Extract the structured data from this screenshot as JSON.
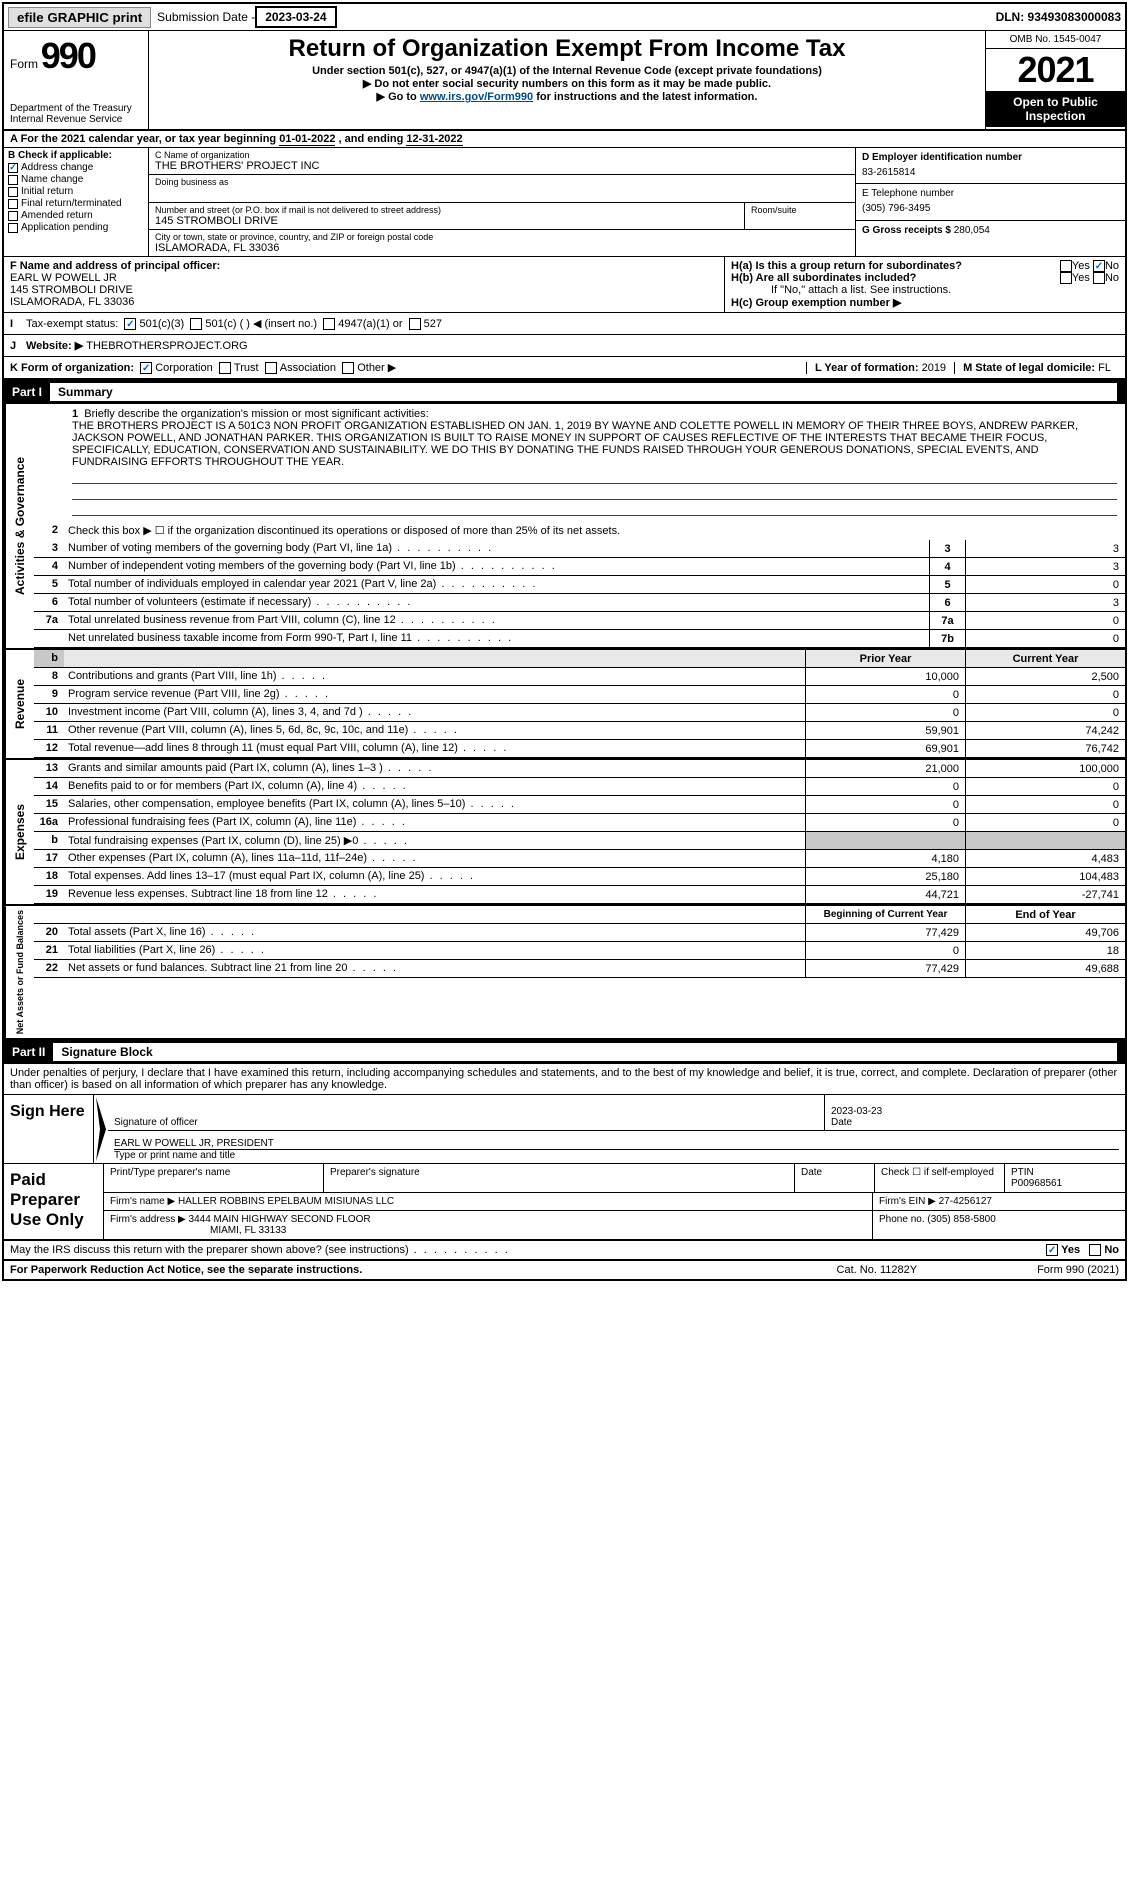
{
  "topbar": {
    "efile": "efile GRAPHIC print",
    "sub_label": "Submission Date - ",
    "sub_date": "2023-03-24",
    "dln": "DLN: 93493083000083"
  },
  "header": {
    "form_word": "Form",
    "form_num": "990",
    "dept": "Department of the Treasury\nInternal Revenue Service",
    "title": "Return of Organization Exempt From Income Tax",
    "sub1": "Under section 501(c), 527, or 4947(a)(1) of the Internal Revenue Code (except private foundations)",
    "sub2": "▶ Do not enter social security numbers on this form as it may be made public.",
    "sub3_pre": "▶ Go to ",
    "sub3_link": "www.irs.gov/Form990",
    "sub3_post": " for instructions and the latest information.",
    "omb": "OMB No. 1545-0047",
    "year": "2021",
    "open": "Open to Public Inspection"
  },
  "a_row": {
    "text_pre": "A For the 2021 calendar year, or tax year beginning ",
    "begin": "01-01-2022",
    "mid": " , and ending ",
    "end": "12-31-2022"
  },
  "b": {
    "title": "B Check if applicable:",
    "items": [
      "Address change",
      "Name change",
      "Initial return",
      "Final return/terminated",
      "Amended return",
      "Application pending"
    ],
    "checked_idx": 0
  },
  "c": {
    "name_lbl": "C Name of organization",
    "name": "THE BROTHERS' PROJECT INC",
    "dba_lbl": "Doing business as",
    "dba": "",
    "addr_lbl": "Number and street (or P.O. box if mail is not delivered to street address)",
    "room_lbl": "Room/suite",
    "addr": "145 STROMBOLI DRIVE",
    "city_lbl": "City or town, state or province, country, and ZIP or foreign postal code",
    "city": "ISLAMORADA, FL  33036"
  },
  "d": {
    "lbl": "D Employer identification number",
    "val": "83-2615814"
  },
  "e": {
    "lbl": "E Telephone number",
    "val": "(305) 796-3495"
  },
  "g": {
    "lbl": "G Gross receipts $",
    "val": "280,054"
  },
  "f": {
    "lbl": "F  Name and address of principal officer:",
    "name": "EARL W POWELL JR",
    "addr1": "145 STROMBOLI DRIVE",
    "addr2": "ISLAMORADA, FL  33036"
  },
  "h": {
    "a_lbl": "H(a)  Is this a group return for subordinates?",
    "b_lbl": "H(b)  Are all subordinates included?",
    "note": "If \"No,\" attach a list. See instructions.",
    "c_lbl": "H(c)  Group exemption number ▶",
    "yes": "Yes",
    "no": "No"
  },
  "i": {
    "lbl": "Tax-exempt status:",
    "opts": [
      "501(c)(3)",
      "501(c) (  ) ◀ (insert no.)",
      "4947(a)(1) or",
      "527"
    ]
  },
  "j": {
    "lbl": "Website: ▶",
    "val": "THEBROTHERSPROJECT.ORG"
  },
  "k": {
    "lbl": "K Form of organization:",
    "opts": [
      "Corporation",
      "Trust",
      "Association",
      "Other ▶"
    ]
  },
  "l": {
    "lbl": "L Year of formation:",
    "val": "2019"
  },
  "m": {
    "lbl": "M State of legal domicile:",
    "val": "FL"
  },
  "part1": {
    "num": "Part I",
    "title": "Summary"
  },
  "mission": {
    "lbl": "Briefly describe the organization's mission or most significant activities:",
    "text": "THE BROTHERS PROJECT IS A 501C3 NON PROFIT ORGANIZATION ESTABLISHED ON JAN. 1, 2019 BY WAYNE AND COLETTE POWELL IN MEMORY OF THEIR THREE BOYS, ANDREW PARKER, JACKSON POWELL, AND JONATHAN PARKER. THIS ORGANIZATION IS BUILT TO RAISE MONEY IN SUPPORT OF CAUSES REFLECTIVE OF THE INTERESTS THAT BECAME THEIR FOCUS, SPECIFICALLY, EDUCATION, CONSERVATION AND SUSTAINABILITY. WE DO THIS BY DONATING THE FUNDS RAISED THROUGH YOUR GENEROUS DONATIONS, SPECIAL EVENTS, AND FUNDRAISING EFFORTS THROUGHOUT THE YEAR."
  },
  "line2": "Check this box ▶ ☐ if the organization discontinued its operations or disposed of more than 25% of its net assets.",
  "gov_rows": [
    {
      "n": "3",
      "t": "Number of voting members of the governing body (Part VI, line 1a)",
      "box": "3",
      "v": "3"
    },
    {
      "n": "4",
      "t": "Number of independent voting members of the governing body (Part VI, line 1b)",
      "box": "4",
      "v": "3"
    },
    {
      "n": "5",
      "t": "Total number of individuals employed in calendar year 2021 (Part V, line 2a)",
      "box": "5",
      "v": "0"
    },
    {
      "n": "6",
      "t": "Total number of volunteers (estimate if necessary)",
      "box": "6",
      "v": "3"
    },
    {
      "n": "7a",
      "t": "Total unrelated business revenue from Part VIII, column (C), line 12",
      "box": "7a",
      "v": "0"
    },
    {
      "n": "",
      "t": "Net unrelated business taxable income from Form 990-T, Part I, line 11",
      "box": "7b",
      "v": "0"
    }
  ],
  "col_hdr": {
    "prior": "Prior Year",
    "current": "Current Year"
  },
  "rev_rows": [
    {
      "n": "8",
      "t": "Contributions and grants (Part VIII, line 1h)",
      "p": "10,000",
      "c": "2,500"
    },
    {
      "n": "9",
      "t": "Program service revenue (Part VIII, line 2g)",
      "p": "0",
      "c": "0"
    },
    {
      "n": "10",
      "t": "Investment income (Part VIII, column (A), lines 3, 4, and 7d )",
      "p": "0",
      "c": "0"
    },
    {
      "n": "11",
      "t": "Other revenue (Part VIII, column (A), lines 5, 6d, 8c, 9c, 10c, and 11e)",
      "p": "59,901",
      "c": "74,242"
    },
    {
      "n": "12",
      "t": "Total revenue—add lines 8 through 11 (must equal Part VIII, column (A), line 12)",
      "p": "69,901",
      "c": "76,742"
    }
  ],
  "exp_rows": [
    {
      "n": "13",
      "t": "Grants and similar amounts paid (Part IX, column (A), lines 1–3 )",
      "p": "21,000",
      "c": "100,000"
    },
    {
      "n": "14",
      "t": "Benefits paid to or for members (Part IX, column (A), line 4)",
      "p": "0",
      "c": "0"
    },
    {
      "n": "15",
      "t": "Salaries, other compensation, employee benefits (Part IX, column (A), lines 5–10)",
      "p": "0",
      "c": "0"
    },
    {
      "n": "16a",
      "t": "Professional fundraising fees (Part IX, column (A), line 11e)",
      "p": "0",
      "c": "0"
    },
    {
      "n": "b",
      "t": "Total fundraising expenses (Part IX, column (D), line 25) ▶0",
      "p": "",
      "c": "",
      "shade": true
    },
    {
      "n": "17",
      "t": "Other expenses (Part IX, column (A), lines 11a–11d, 11f–24e)",
      "p": "4,180",
      "c": "4,483"
    },
    {
      "n": "18",
      "t": "Total expenses. Add lines 13–17 (must equal Part IX, column (A), line 25)",
      "p": "25,180",
      "c": "104,483"
    },
    {
      "n": "19",
      "t": "Revenue less expenses. Subtract line 18 from line 12",
      "p": "44,721",
      "c": "-27,741"
    }
  ],
  "na_hdr": {
    "begin": "Beginning of Current Year",
    "end": "End of Year"
  },
  "na_rows": [
    {
      "n": "20",
      "t": "Total assets (Part X, line 16)",
      "p": "77,429",
      "c": "49,706"
    },
    {
      "n": "21",
      "t": "Total liabilities (Part X, line 26)",
      "p": "0",
      "c": "18"
    },
    {
      "n": "22",
      "t": "Net assets or fund balances. Subtract line 21 from line 20",
      "p": "77,429",
      "c": "49,688"
    }
  ],
  "vtabs": {
    "gov": "Activities & Governance",
    "rev": "Revenue",
    "exp": "Expenses",
    "na": "Net Assets or Fund Balances"
  },
  "part2": {
    "num": "Part II",
    "title": "Signature Block"
  },
  "penalty": "Under penalties of perjury, I declare that I have examined this return, including accompanying schedules and statements, and to the best of my knowledge and belief, it is true, correct, and complete. Declaration of preparer (other than officer) is based on all information of which preparer has any knowledge.",
  "sign": {
    "here": "Sign Here",
    "sig_lbl": "Signature of officer",
    "date_lbl": "Date",
    "date": "2023-03-23",
    "name": "EARL W POWELL JR, PRESIDENT",
    "name_lbl": "Type or print name and title"
  },
  "paid": {
    "title": "Paid Preparer Use Only",
    "h1": "Print/Type preparer's name",
    "h2": "Preparer's signature",
    "h3": "Date",
    "h4_pre": "Check ☐ if self-employed",
    "h5": "PTIN",
    "ptin": "P00968561",
    "firm_lbl": "Firm's name    ▶",
    "firm": "HALLER ROBBINS EPELBAUM MISIUNAS LLC",
    "ein_lbl": "Firm's EIN ▶",
    "ein": "27-4256127",
    "addr_lbl": "Firm's address ▶",
    "addr1": "3444 MAIN HIGHWAY SECOND FLOOR",
    "addr2": "MIAMI, FL  33133",
    "phone_lbl": "Phone no.",
    "phone": "(305) 858-5800"
  },
  "discuss": {
    "text": "May the IRS discuss this return with the preparer shown above? (see instructions)",
    "yes": "Yes",
    "no": "No"
  },
  "footer": {
    "left": "For Paperwork Reduction Act Notice, see the separate instructions.",
    "mid": "Cat. No. 11282Y",
    "right": "Form 990 (2021)"
  }
}
